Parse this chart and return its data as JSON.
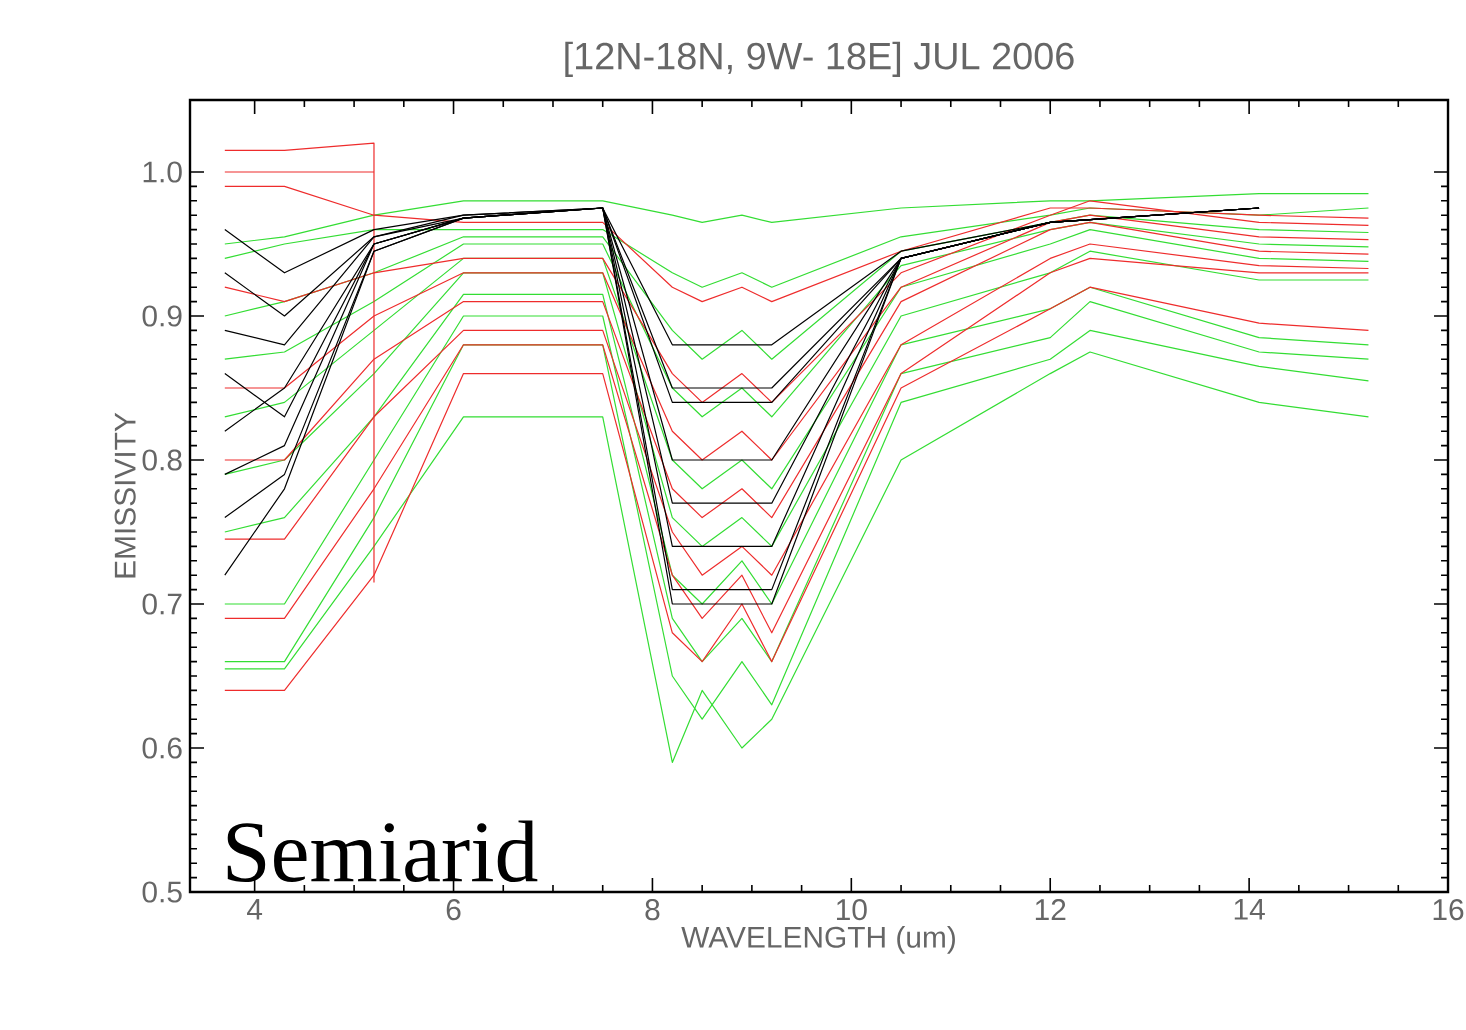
{
  "chart_data": {
    "type": "line",
    "title": "[12N-18N,  9W- 18E]   JUL 2006",
    "xlabel": "WAVELENGTH (um)",
    "ylabel": "EMISSIVITY",
    "annotations": [
      "Semiarid"
    ],
    "xlim": [
      3.35,
      16
    ],
    "ylim": [
      0.5,
      1.05
    ],
    "xticks": [
      4,
      6,
      8,
      10,
      12,
      14,
      16
    ],
    "yticks": [
      0.5,
      0.6,
      0.7,
      0.8,
      0.9,
      {
        "value": 1.0,
        "label": "1.0"
      }
    ],
    "grid": false,
    "marker": "none",
    "line_style": "solid",
    "x": [
      3.7,
      4.3,
      5.2,
      6.1,
      7.5,
      8.2,
      8.5,
      8.9,
      9.2,
      10.5,
      12.0,
      12.4,
      14.1,
      15.2
    ],
    "series": [
      {
        "color": "#33dd33",
        "values": [
          0.95,
          0.955,
          0.97,
          0.98,
          0.98,
          0.97,
          0.965,
          0.97,
          0.965,
          0.975,
          0.98,
          0.98,
          0.985,
          0.985
        ]
      },
      {
        "color": "#33dd33",
        "values": [
          0.94,
          0.95,
          0.96,
          0.96,
          0.96,
          0.93,
          0.92,
          0.93,
          0.92,
          0.955,
          0.97,
          0.975,
          0.97,
          0.975
        ]
      },
      {
        "color": "#33dd33",
        "values": [
          0.9,
          0.91,
          0.93,
          0.955,
          0.955,
          0.89,
          0.87,
          0.89,
          0.87,
          0.945,
          0.965,
          0.97,
          0.96,
          0.958
        ]
      },
      {
        "color": "#33dd33",
        "values": [
          0.87,
          0.875,
          0.91,
          0.95,
          0.95,
          0.85,
          0.83,
          0.85,
          0.83,
          0.935,
          0.96,
          0.965,
          0.95,
          0.948
        ]
      },
      {
        "color": "#33dd33",
        "values": [
          0.83,
          0.84,
          0.89,
          0.94,
          0.94,
          0.8,
          0.78,
          0.8,
          0.78,
          0.92,
          0.95,
          0.96,
          0.94,
          0.938
        ]
      },
      {
        "color": "#33dd33",
        "values": [
          0.79,
          0.8,
          0.86,
          0.93,
          0.93,
          0.76,
          0.74,
          0.76,
          0.74,
          0.9,
          0.93,
          0.945,
          0.925,
          0.925
        ]
      },
      {
        "color": "#33dd33",
        "values": [
          0.75,
          0.76,
          0.83,
          0.915,
          0.915,
          0.72,
          0.7,
          0.73,
          0.7,
          0.88,
          0.905,
          0.92,
          0.885,
          0.88
        ]
      },
      {
        "color": "#33dd33",
        "values": [
          0.7,
          0.7,
          0.8,
          0.9,
          0.9,
          0.69,
          0.66,
          0.69,
          0.66,
          0.86,
          0.885,
          0.91,
          0.875,
          0.87
        ]
      },
      {
        "color": "#33dd33",
        "values": [
          0.66,
          0.66,
          0.76,
          0.88,
          0.88,
          0.65,
          0.62,
          0.66,
          0.63,
          0.84,
          0.87,
          0.89,
          0.865,
          0.855
        ]
      },
      {
        "color": "#33dd33",
        "values": [
          0.655,
          0.655,
          0.74,
          0.83,
          0.83,
          0.59,
          0.64,
          0.6,
          0.62,
          0.8,
          0.86,
          0.875,
          0.84,
          0.83
        ]
      },
      {
        "color": "#ee2c2c",
        "values": [
          0.99,
          0.99,
          0.97,
          0.965,
          0.965,
          0.92,
          0.91,
          0.92,
          0.91,
          0.945,
          0.975,
          0.975,
          0.97,
          0.968
        ]
      },
      {
        "color": "#ee2c2c",
        "values": [
          0.92,
          0.91,
          0.93,
          0.94,
          0.94,
          0.86,
          0.84,
          0.86,
          0.84,
          0.93,
          0.97,
          0.98,
          0.965,
          0.963
        ]
      },
      {
        "color": "#ee2c2c",
        "values": [
          0.85,
          0.85,
          0.9,
          0.93,
          0.93,
          0.82,
          0.8,
          0.82,
          0.8,
          0.92,
          0.965,
          0.97,
          0.955,
          0.953
        ]
      },
      {
        "color": "#ee2c2c",
        "values": [
          0.8,
          0.8,
          0.87,
          0.91,
          0.91,
          0.78,
          0.76,
          0.78,
          0.76,
          0.91,
          0.96,
          0.965,
          0.945,
          0.943
        ]
      },
      {
        "color": "#ee2c2c",
        "values": [
          0.745,
          0.745,
          0.83,
          0.89,
          0.89,
          0.75,
          0.72,
          0.74,
          0.72,
          0.88,
          0.94,
          0.95,
          0.935,
          0.933
        ]
      },
      {
        "color": "#ee2c2c",
        "values": [
          0.69,
          0.69,
          0.78,
          0.88,
          0.88,
          0.72,
          0.69,
          0.72,
          0.68,
          0.86,
          0.93,
          0.94,
          0.93,
          0.93
        ]
      },
      {
        "color": "#ee2c2c",
        "values": [
          0.64,
          0.64,
          0.72,
          0.86,
          0.86,
          0.68,
          0.66,
          0.7,
          0.66,
          0.85,
          0.905,
          0.92,
          0.895,
          0.89
        ]
      },
      {
        "color": "#ee2c2c",
        "x": [
          3.7,
          4.3,
          5.2,
          5.2
        ],
        "values": [
          1.015,
          1.015,
          1.02,
          0.715
        ]
      },
      {
        "color": "#ee2c2c",
        "x": [
          3.7,
          4.3,
          5.2
        ],
        "values": [
          1.0,
          1.0,
          1.0
        ]
      },
      {
        "color": "#000000",
        "x": [
          3.7,
          4.3,
          5.2,
          6.1,
          7.5,
          8.2,
          8.5,
          8.9,
          9.2,
          10.5,
          12.0,
          14.1
        ],
        "values": [
          0.96,
          0.93,
          0.96,
          0.97,
          0.975,
          0.88,
          0.88,
          0.88,
          0.88,
          0.945,
          0.965,
          0.975
        ]
      },
      {
        "color": "#000000",
        "x": [
          3.7,
          4.3,
          5.2,
          6.1,
          7.5,
          8.2,
          8.5,
          8.9,
          9.2,
          10.5,
          12.0,
          14.1
        ],
        "values": [
          0.93,
          0.9,
          0.955,
          0.97,
          0.975,
          0.85,
          0.85,
          0.85,
          0.85,
          0.94,
          0.965,
          0.975
        ]
      },
      {
        "color": "#000000",
        "x": [
          3.7,
          4.3,
          5.2,
          6.1,
          7.5,
          8.2,
          8.5,
          8.9,
          9.2,
          10.5,
          12.0,
          14.1
        ],
        "values": [
          0.89,
          0.88,
          0.955,
          0.968,
          0.975,
          0.84,
          0.84,
          0.84,
          0.84,
          0.94,
          0.965,
          0.975
        ]
      },
      {
        "color": "#000000",
        "x": [
          3.7,
          4.3,
          5.2,
          6.1,
          7.5,
          8.2,
          8.5,
          8.9,
          9.2,
          10.5,
          12.0,
          14.1
        ],
        "values": [
          0.86,
          0.83,
          0.95,
          0.968,
          0.975,
          0.8,
          0.8,
          0.8,
          0.8,
          0.94,
          0.965,
          0.975
        ]
      },
      {
        "color": "#000000",
        "x": [
          3.7,
          4.3,
          5.2,
          6.1,
          7.5,
          8.2,
          8.5,
          8.9,
          9.2,
          10.5,
          12.0,
          14.1
        ],
        "values": [
          0.82,
          0.85,
          0.95,
          0.968,
          0.975,
          0.77,
          0.77,
          0.77,
          0.77,
          0.94,
          0.965,
          0.975
        ]
      },
      {
        "color": "#000000",
        "x": [
          3.7,
          4.3,
          5.2,
          6.1,
          7.5,
          8.2,
          8.5,
          8.9,
          9.2,
          10.5,
          12.0,
          14.1
        ],
        "values": [
          0.79,
          0.81,
          0.95,
          0.968,
          0.975,
          0.74,
          0.74,
          0.74,
          0.74,
          0.94,
          0.965,
          0.975
        ]
      },
      {
        "color": "#000000",
        "x": [
          3.7,
          4.3,
          5.2,
          6.1,
          7.5,
          8.2,
          8.5,
          8.9,
          9.2,
          10.5,
          12.0,
          14.1
        ],
        "values": [
          0.76,
          0.79,
          0.945,
          0.968,
          0.975,
          0.71,
          0.71,
          0.71,
          0.71,
          0.94,
          0.965,
          0.975
        ]
      },
      {
        "color": "#000000",
        "x": [
          3.7,
          4.3,
          5.2,
          6.1,
          7.5,
          8.2,
          8.5,
          8.9,
          9.2,
          10.5,
          12.0,
          14.1
        ],
        "values": [
          0.72,
          0.78,
          0.945,
          0.968,
          0.975,
          0.7,
          0.7,
          0.7,
          0.7,
          0.94,
          0.965,
          0.975
        ]
      }
    ]
  }
}
